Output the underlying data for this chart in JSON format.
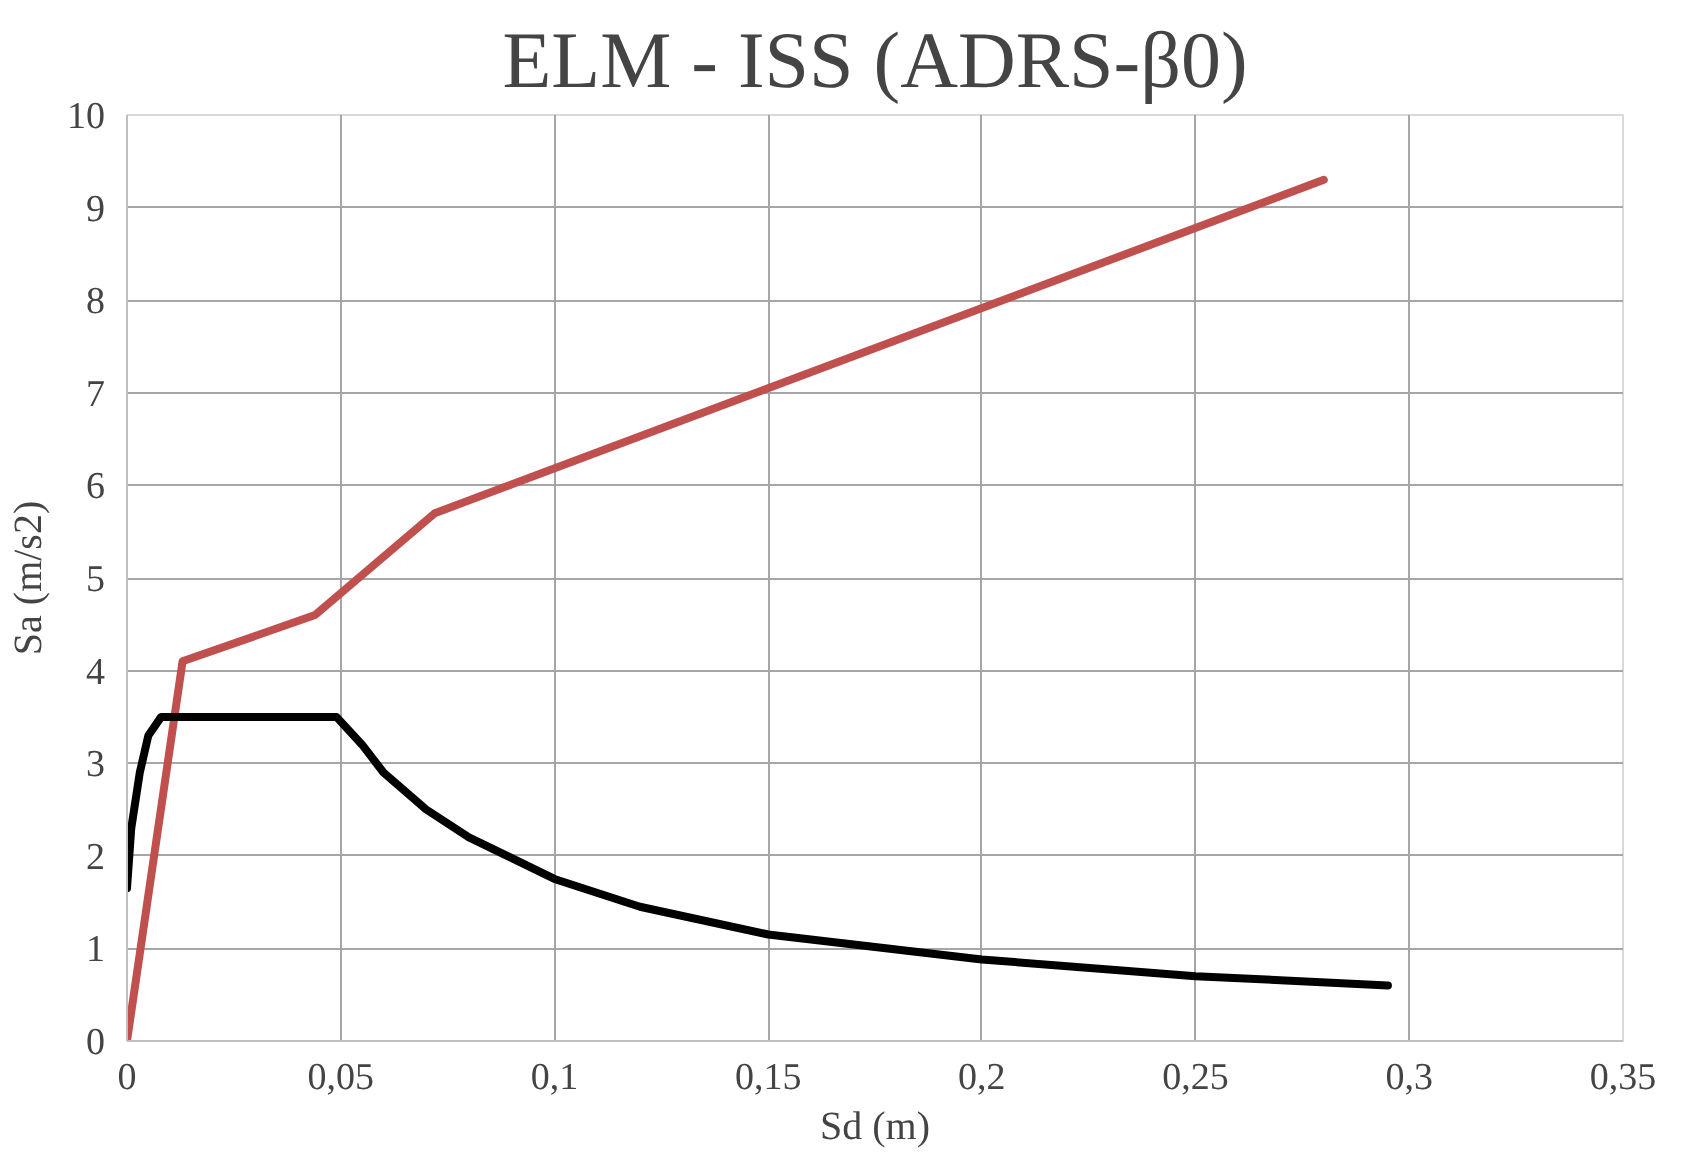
{
  "chart_data": {
    "type": "line",
    "title": "ELM - ISS (ADRS-β0)",
    "xlabel": "Sd (m)",
    "ylabel": "Sa (m/s2)",
    "series": [
      {
        "color": "#c0504d",
        "x": [
          0,
          0.013,
          0.044,
          0.072,
          0.28
        ],
        "values": [
          0,
          4.1,
          4.6,
          5.7,
          9.3
        ]
      },
      {
        "color": "#000000",
        "x": [
          0,
          0.001,
          0.003,
          0.005,
          0.008,
          0.049,
          0.055,
          0.06,
          0.07,
          0.08,
          0.1,
          0.12,
          0.15,
          0.2,
          0.25,
          0.295
        ],
        "values": [
          1.65,
          2.3,
          2.9,
          3.3,
          3.5,
          3.5,
          3.2,
          2.9,
          2.5,
          2.2,
          1.75,
          1.45,
          1.15,
          0.88,
          0.7,
          0.6
        ]
      }
    ],
    "xlim": [
      0,
      0.35
    ],
    "xticks": [
      0,
      {
        "value": 0.05,
        "label": "0,05"
      },
      {
        "value": 0.1,
        "label": "0,1"
      },
      {
        "value": 0.15,
        "label": "0,15"
      },
      {
        "value": 0.2,
        "label": "0,2"
      },
      {
        "value": 0.25,
        "label": "0,25"
      },
      {
        "value": 0.3,
        "label": "0,3"
      },
      {
        "value": 0.35,
        "label": "0,35"
      }
    ],
    "ylim": [
      0,
      10
    ],
    "yticks": [
      0,
      1,
      2,
      3,
      4,
      5,
      6,
      7,
      8,
      9,
      10
    ],
    "grid": true,
    "marker": "none",
    "line_style": "solid"
  }
}
